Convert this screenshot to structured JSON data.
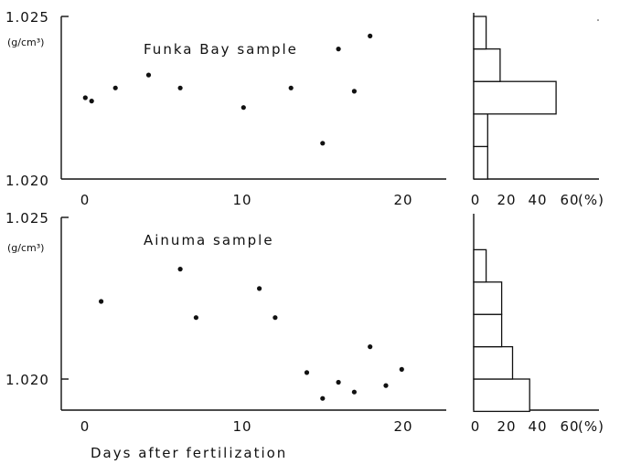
{
  "chart_data": [
    {
      "type": "scatter",
      "title": "Funka Bay sample",
      "xlabel": "",
      "ylabel": "",
      "y_unit": "(g/cm³)",
      "xlim": [
        0,
        22
      ],
      "ylim": [
        1.02,
        1.025
      ],
      "x_ticks": [
        "0",
        "10",
        "20"
      ],
      "y_ticks": [
        "1.020",
        "1.025"
      ],
      "points": [
        {
          "x": 1.0,
          "y": 1.0225
        },
        {
          "x": 1.4,
          "y": 1.0224
        },
        {
          "x": 2.9,
          "y": 1.0228
        },
        {
          "x": 5.0,
          "y": 1.0232
        },
        {
          "x": 7.0,
          "y": 1.0228
        },
        {
          "x": 11.0,
          "y": 1.0222
        },
        {
          "x": 14.0,
          "y": 1.0228
        },
        {
          "x": 16.0,
          "y": 1.0211
        },
        {
          "x": 17.0,
          "y": 1.024
        },
        {
          "x": 18.0,
          "y": 1.0227
        },
        {
          "x": 19.0,
          "y": 1.0244
        }
      ]
    },
    {
      "type": "bar",
      "orientation": "horizontal",
      "bin_edges": [
        1.02,
        1.021,
        1.022,
        1.023,
        1.024,
        1.025
      ],
      "values": [
        9,
        9,
        53,
        17,
        8
      ],
      "xlim": [
        0,
        60
      ],
      "x_ticks": [
        "0",
        "20",
        "40",
        "60"
      ],
      "x_unit": "(%)"
    },
    {
      "type": "scatter",
      "title": "Ainuma sample",
      "xlabel": "Days after fertilization",
      "ylabel": "",
      "y_unit": "(g/cm³)",
      "xlim": [
        0,
        22
      ],
      "ylim": [
        1.0193,
        1.025
      ],
      "x_ticks": [
        "0",
        "10",
        "20"
      ],
      "y_ticks": [
        "1.020",
        "1.025"
      ],
      "points": [
        {
          "x": 2.0,
          "y": 1.0224
        },
        {
          "x": 7.0,
          "y": 1.0234
        },
        {
          "x": 8.0,
          "y": 1.0219
        },
        {
          "x": 12.0,
          "y": 1.0228
        },
        {
          "x": 13.0,
          "y": 1.0219
        },
        {
          "x": 15.0,
          "y": 1.0202
        },
        {
          "x": 16.0,
          "y": 1.0194
        },
        {
          "x": 17.0,
          "y": 1.0199
        },
        {
          "x": 18.0,
          "y": 1.0196
        },
        {
          "x": 19.0,
          "y": 1.021
        },
        {
          "x": 20.0,
          "y": 1.0198
        },
        {
          "x": 21.0,
          "y": 1.0203
        }
      ]
    },
    {
      "type": "bar",
      "orientation": "horizontal",
      "bin_edges": [
        1.019,
        1.02,
        1.021,
        1.022,
        1.023,
        1.024
      ],
      "values": [
        36,
        25,
        18,
        18,
        8
      ],
      "xlim": [
        0,
        60
      ],
      "x_ticks": [
        "0",
        "20",
        "40",
        "60"
      ],
      "x_unit": "(%)"
    }
  ]
}
